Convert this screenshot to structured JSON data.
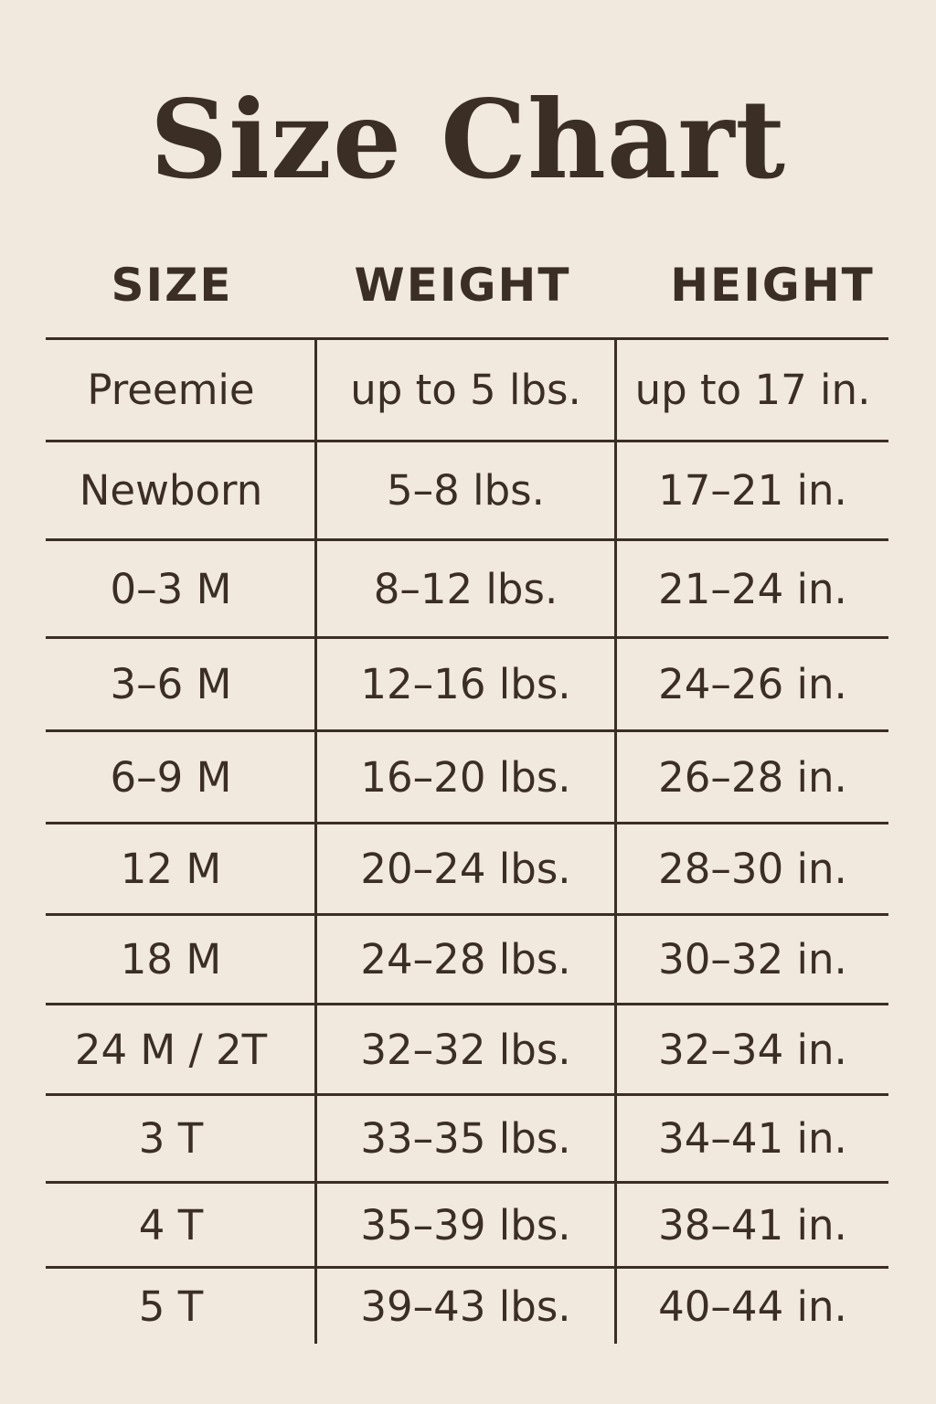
{
  "title": "Size Chart",
  "colors": {
    "background": "#f1e9dd",
    "text": "#3b2e25"
  },
  "headers": [
    "SIZE",
    "WEIGHT",
    "HEIGHT"
  ],
  "rows": [
    [
      "Preemie",
      "up to 5 lbs.",
      "up to 17 in."
    ],
    [
      "Newborn",
      "5–8 lbs.",
      "17–21 in."
    ],
    [
      "0–3 M",
      "8–12 lbs.",
      "21–24 in."
    ],
    [
      "3–6 M",
      "12–16 lbs.",
      "24–26 in."
    ],
    [
      "6–9 M",
      "16–20 lbs.",
      "26–28 in."
    ],
    [
      "12 M",
      "20–24 lbs.",
      "28–30 in."
    ],
    [
      "18 M",
      "24–28 lbs.",
      "30–32 in."
    ],
    [
      "24 M / 2T",
      "32–32 lbs.",
      "32–34 in."
    ],
    [
      "3 T",
      "33–35 lbs.",
      "34–41 in."
    ],
    [
      "4 T",
      "35–39 lbs.",
      "38–41 in."
    ],
    [
      "5 T",
      "39–43 lbs.",
      "40–44 in."
    ]
  ]
}
